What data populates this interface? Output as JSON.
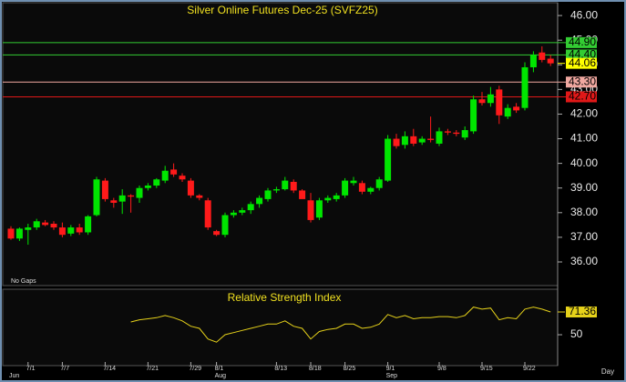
{
  "chart_data": [
    {
      "type": "candlestick",
      "title": "Silver Online Futures Dec-25 (SVFZ25)",
      "note": "No Gaps",
      "x_unit": "Day",
      "categories": [
        null,
        null,
        "7/1",
        null,
        null,
        null,
        "7/7",
        null,
        null,
        null,
        null,
        "7/14",
        null,
        null,
        null,
        null,
        "7/21",
        null,
        null,
        null,
        null,
        "7/29",
        null,
        null,
        "8/1",
        null,
        null,
        null,
        null,
        null,
        null,
        "8/13",
        null,
        null,
        null,
        "8/18",
        null,
        null,
        null,
        "8/25",
        null,
        null,
        null,
        null,
        "9/1",
        null,
        null,
        null,
        null,
        null,
        "9/8",
        null,
        null,
        null,
        null,
        "9/15",
        null,
        null,
        null,
        null,
        "9/22",
        null,
        null,
        null
      ],
      "months": [
        "Jun",
        null,
        null,
        null,
        null,
        null,
        null,
        null,
        null,
        null,
        null,
        null,
        null,
        null,
        null,
        null,
        null,
        null,
        null,
        null,
        null,
        null,
        null,
        null,
        "Aug",
        null,
        null,
        null,
        null,
        null,
        null,
        null,
        null,
        null,
        null,
        null,
        null,
        null,
        null,
        null,
        null,
        null,
        null,
        null,
        "Sep",
        null,
        null,
        null,
        null,
        null,
        null,
        null,
        null,
        null,
        null,
        null,
        null,
        null,
        null,
        null,
        null,
        null,
        null,
        null
      ],
      "open": [
        37.35,
        36.95,
        37.3,
        37.4,
        37.6,
        37.55,
        37.4,
        37.15,
        37.4,
        37.2,
        37.9,
        39.3,
        38.5,
        38.45,
        38.7,
        38.6,
        39.0,
        39.1,
        39.3,
        39.75,
        39.5,
        39.3,
        38.7,
        38.5,
        37.25,
        37.1,
        37.9,
        38.0,
        38.1,
        38.35,
        38.55,
        38.9,
        38.95,
        39.25,
        38.9,
        38.5,
        37.8,
        38.5,
        38.55,
        38.7,
        39.2,
        39.2,
        38.85,
        39.0,
        39.3,
        41.0,
        40.75,
        41.1,
        40.85,
        41.0,
        40.8,
        41.3,
        41.25,
        41.05,
        41.3,
        42.6,
        42.45,
        43.0,
        41.9,
        42.3,
        42.25,
        43.9,
        44.5,
        44.25
      ],
      "high": [
        37.45,
        37.4,
        37.55,
        37.75,
        37.7,
        37.65,
        37.6,
        37.5,
        37.55,
        37.9,
        39.45,
        39.4,
        38.6,
        38.95,
        38.75,
        39.1,
        39.2,
        39.4,
        39.9,
        40.0,
        39.6,
        39.4,
        38.75,
        38.6,
        37.3,
        38.0,
        38.1,
        38.2,
        38.45,
        38.7,
        39.0,
        39.05,
        39.45,
        39.35,
        38.95,
        38.8,
        38.6,
        38.7,
        38.8,
        39.4,
        39.45,
        39.3,
        39.05,
        39.45,
        41.15,
        41.2,
        41.3,
        41.4,
        41.1,
        41.9,
        41.45,
        41.4,
        41.35,
        41.5,
        42.75,
        42.9,
        43.1,
        43.15,
        42.4,
        42.45,
        44.1,
        44.55,
        44.75,
        44.4
      ],
      "low": [
        36.9,
        36.85,
        36.7,
        37.3,
        37.45,
        37.3,
        37.0,
        37.05,
        37.1,
        37.1,
        37.85,
        38.45,
        38.2,
        37.95,
        38.0,
        38.4,
        38.9,
        39.0,
        39.2,
        39.45,
        39.25,
        38.6,
        38.5,
        37.3,
        37.05,
        37.0,
        37.8,
        37.9,
        37.95,
        38.2,
        38.45,
        38.8,
        38.9,
        38.8,
        38.6,
        37.6,
        37.7,
        38.4,
        38.45,
        38.6,
        39.1,
        38.75,
        38.75,
        38.9,
        39.25,
        40.6,
        40.6,
        40.7,
        40.75,
        40.85,
        40.7,
        41.15,
        41.1,
        40.95,
        41.2,
        42.35,
        42.3,
        41.6,
        41.8,
        42.05,
        42.15,
        43.7,
        44.1,
        43.95
      ],
      "close": [
        36.95,
        37.35,
        37.4,
        37.65,
        37.5,
        37.4,
        37.1,
        37.4,
        37.2,
        37.85,
        39.35,
        38.55,
        38.4,
        38.7,
        38.65,
        39.0,
        39.1,
        39.35,
        39.7,
        39.55,
        39.35,
        38.7,
        38.6,
        37.4,
        37.1,
        37.9,
        38.0,
        38.1,
        38.35,
        38.6,
        38.9,
        38.95,
        39.3,
        38.9,
        38.55,
        37.7,
        38.5,
        38.6,
        38.7,
        39.3,
        39.3,
        38.85,
        39.0,
        39.35,
        41.0,
        40.7,
        41.1,
        40.8,
        41.0,
        40.95,
        41.3,
        41.25,
        41.2,
        41.35,
        42.6,
        42.45,
        42.8,
        41.95,
        42.25,
        42.15,
        43.9,
        44.4,
        44.2,
        44.06
      ],
      "up_color": "#00e600",
      "down_color": "#ff1a1a",
      "ylim": [
        35.04,
        46.52
      ],
      "yticks": [
        {
          "value": 36,
          "label": "36.00"
        },
        {
          "value": 37,
          "label": "37.00"
        },
        {
          "value": 38,
          "label": "38.00"
        },
        {
          "value": 39,
          "label": "39.00"
        },
        {
          "value": 40,
          "label": "40.00"
        },
        {
          "value": 41,
          "label": "41.00"
        },
        {
          "value": 42,
          "label": "42.00"
        },
        {
          "value": 43,
          "label": "43.00"
        },
        {
          "value": 44,
          "label": "44.00"
        },
        {
          "value": 45,
          "label": "45.00"
        },
        {
          "value": 46,
          "label": "46.00"
        }
      ],
      "levels": [
        {
          "value": 44.9,
          "label": "44.90",
          "color": "#33cc33"
        },
        {
          "value": 44.4,
          "label": "44.40",
          "color": "#33cc33"
        },
        {
          "value": 43.3,
          "label": "43.30",
          "color": "#f0a8a0"
        },
        {
          "value": 42.7,
          "label": "42.70",
          "color": "#e01818"
        }
      ],
      "last_price": {
        "value": 44.06,
        "color": "#ffff00"
      }
    },
    {
      "type": "line",
      "title": "Relative Strength Index",
      "values": [
        null,
        null,
        null,
        null,
        null,
        null,
        null,
        null,
        null,
        null,
        null,
        null,
        null,
        null,
        62,
        64,
        65,
        66,
        68,
        66,
        63,
        58,
        56,
        46,
        43,
        50,
        52,
        54,
        56,
        58,
        60,
        60,
        63,
        58,
        56,
        46,
        53,
        55,
        56,
        60,
        60,
        56,
        57,
        60,
        69,
        66,
        68,
        65,
        66,
        66,
        67,
        67,
        66,
        68,
        76,
        74,
        75,
        64,
        66,
        65,
        74,
        76,
        74,
        71.36
      ],
      "color": "#e6d21a",
      "ylim": [
        21,
        91
      ],
      "yticks": [
        50
      ]
    }
  ]
}
